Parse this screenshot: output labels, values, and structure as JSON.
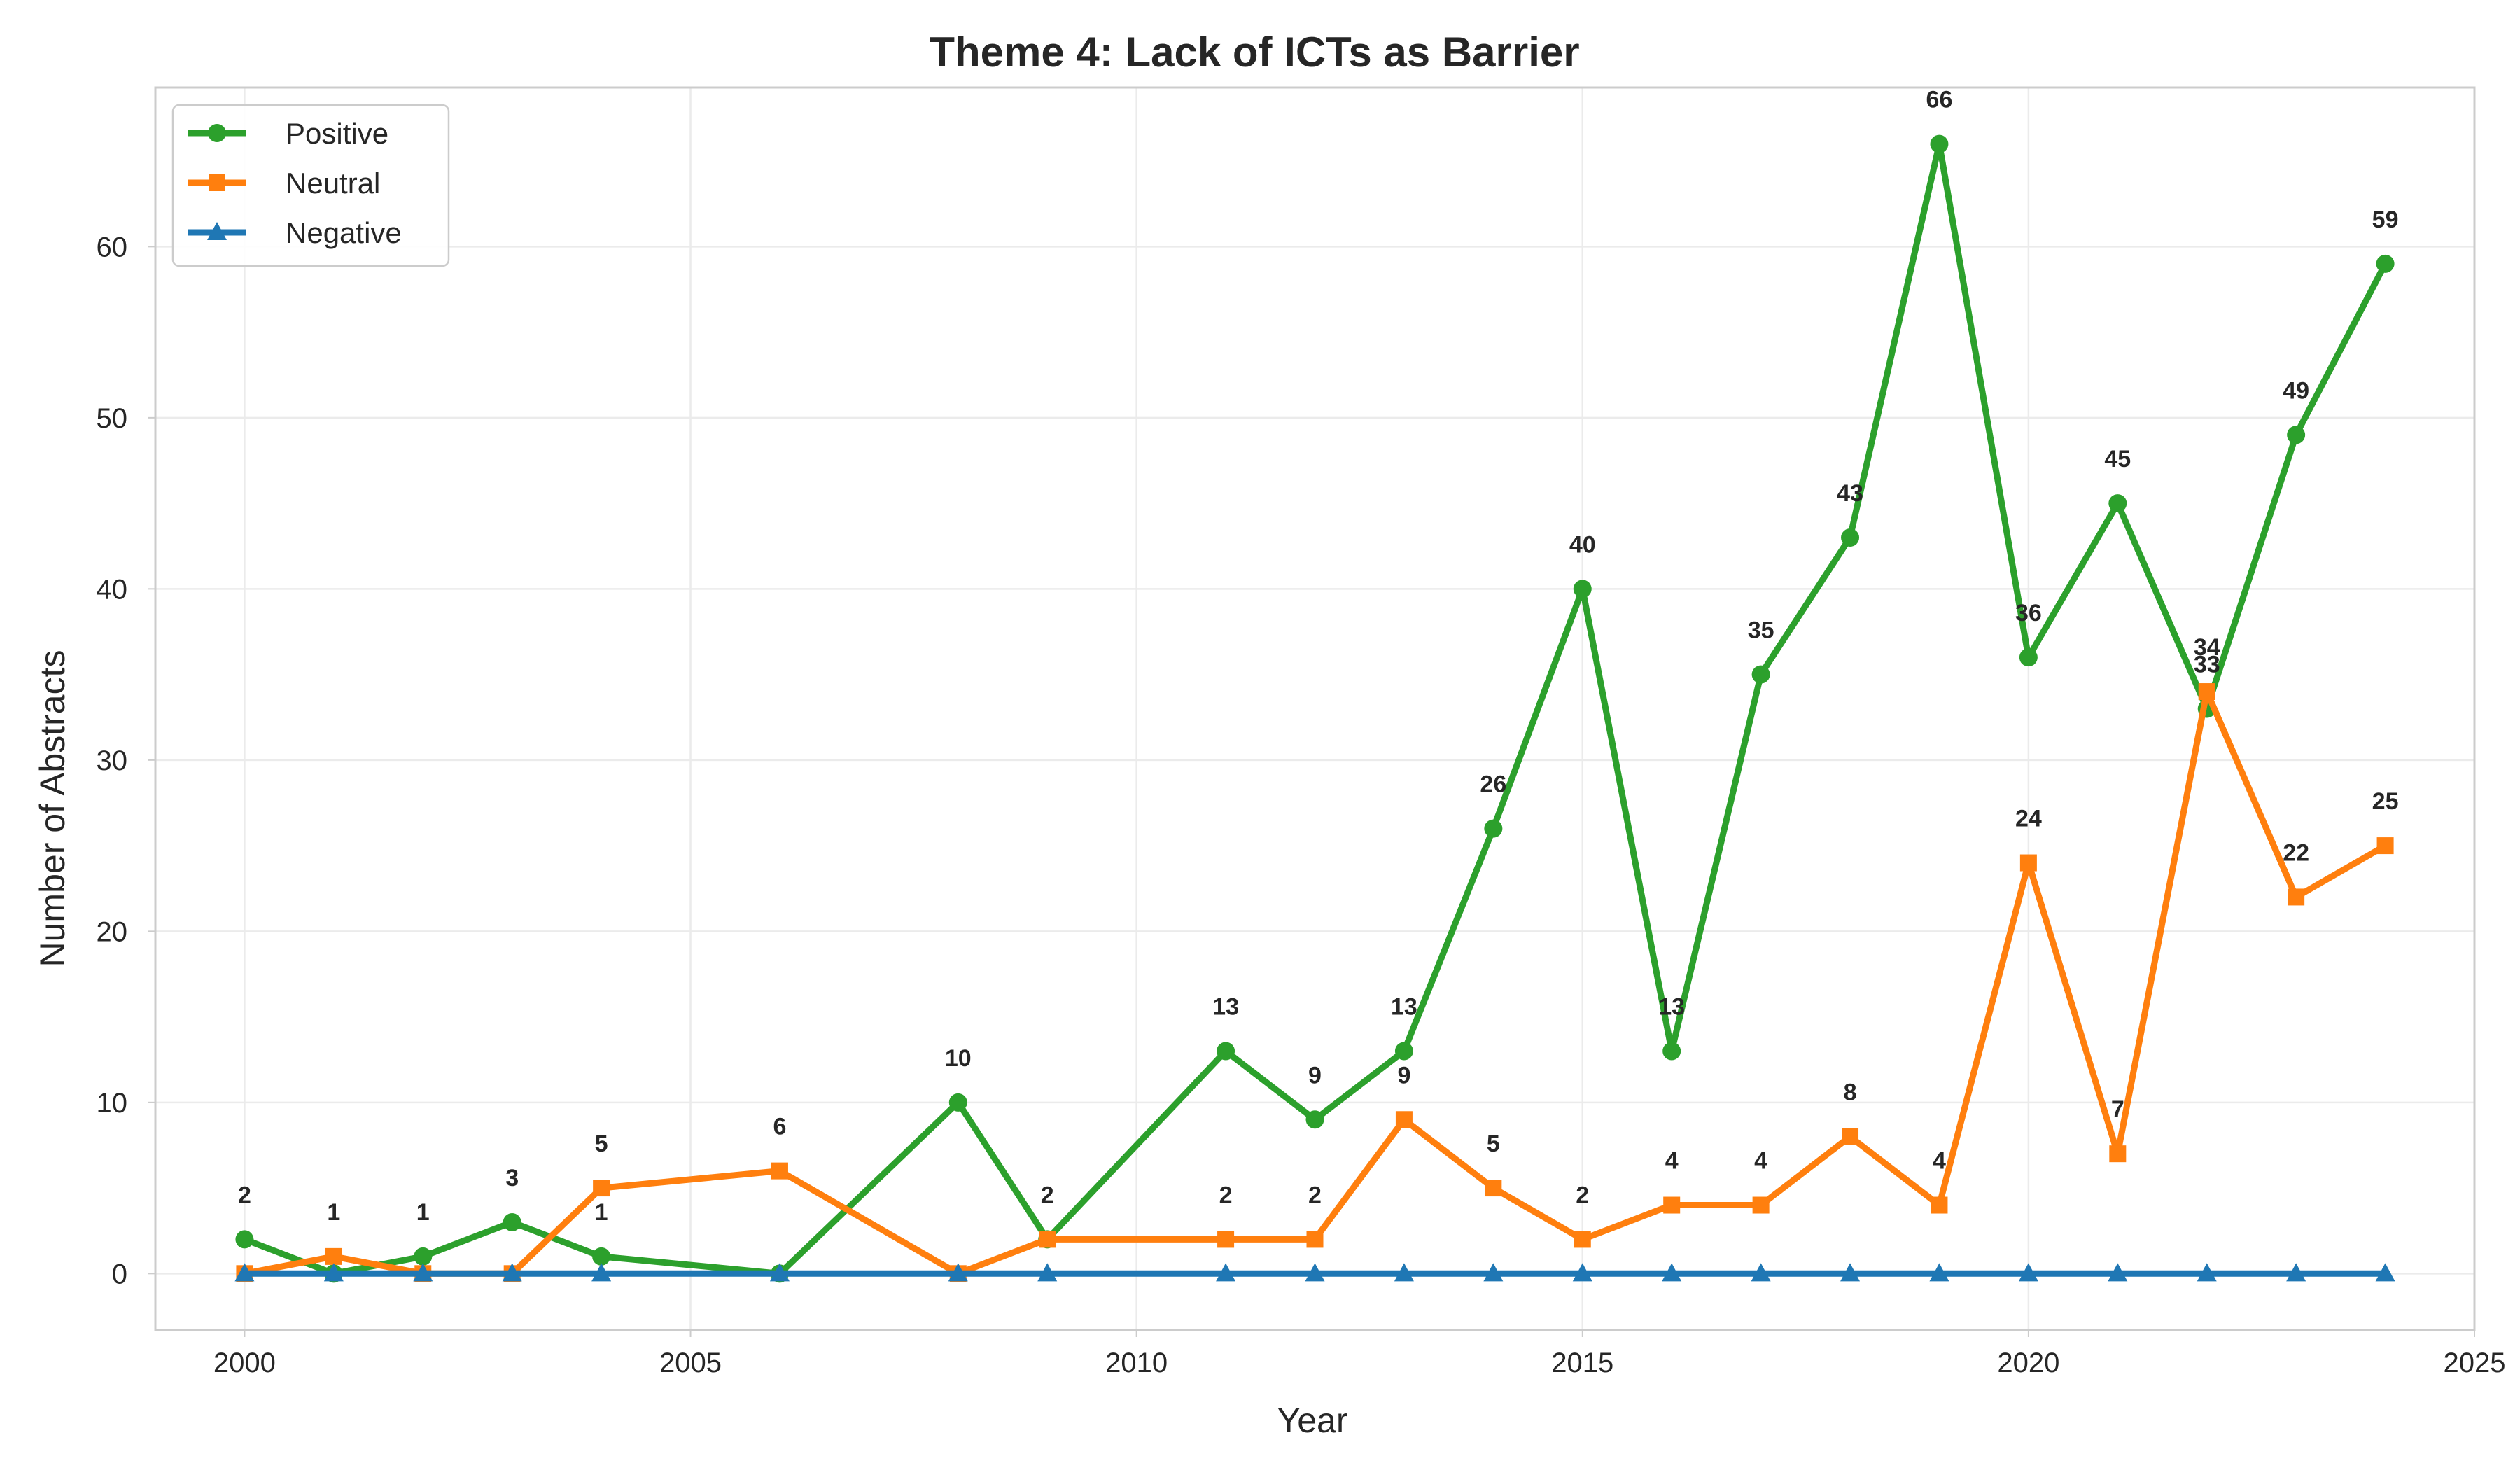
{
  "chart_data": {
    "type": "line",
    "title": "Theme 4: Lack of ICTs as Barrier",
    "xlabel": "Year",
    "ylabel": "Number of Abstracts",
    "xlim": [
      1999,
      2025
    ],
    "ylim": [
      -3.3,
      69.3
    ],
    "xticks": [
      2000,
      2005,
      2010,
      2015,
      2020,
      2025
    ],
    "yticks": [
      0,
      10,
      20,
      30,
      40,
      50,
      60
    ],
    "grid": true,
    "legend_position": "upper-left",
    "x": [
      2000,
      2001,
      2002,
      2003,
      2004,
      2006,
      2008,
      2009,
      2011,
      2012,
      2013,
      2014,
      2015,
      2016,
      2017,
      2018,
      2019,
      2020,
      2021,
      2022,
      2023,
      2024
    ],
    "series": [
      {
        "name": "Positive",
        "color": "#2ca02c",
        "marker": "circle",
        "values": [
          2,
          0,
          1,
          3,
          1,
          0,
          10,
          2,
          13,
          9,
          13,
          26,
          40,
          13,
          35,
          43,
          66,
          36,
          45,
          33,
          49,
          59
        ],
        "data_labels": [
          "2",
          "",
          "1",
          "3",
          "1",
          "",
          "10",
          "2",
          "13",
          "9",
          "13",
          "26",
          "40",
          "13",
          "35",
          "43",
          "66",
          "36",
          "45",
          "33",
          "49",
          "59"
        ]
      },
      {
        "name": "Neutral",
        "color": "#ff7f0e",
        "marker": "square",
        "values": [
          0,
          1,
          0,
          0,
          5,
          6,
          0,
          2,
          2,
          2,
          9,
          5,
          2,
          4,
          4,
          8,
          4,
          24,
          7,
          34,
          22,
          25
        ],
        "data_labels": [
          "",
          "1",
          "",
          "",
          "5",
          "6",
          "",
          "",
          "2",
          "2",
          "9",
          "5",
          "2",
          "4",
          "4",
          "8",
          "4",
          "24",
          "7",
          "34",
          "22",
          "25"
        ]
      },
      {
        "name": "Negative",
        "color": "#1f77b4",
        "marker": "triangle",
        "values": [
          0,
          0,
          0,
          0,
          0,
          0,
          0,
          0,
          0,
          0,
          0,
          0,
          0,
          0,
          0,
          0,
          0,
          0,
          0,
          0,
          0,
          0
        ],
        "data_labels": []
      }
    ]
  }
}
